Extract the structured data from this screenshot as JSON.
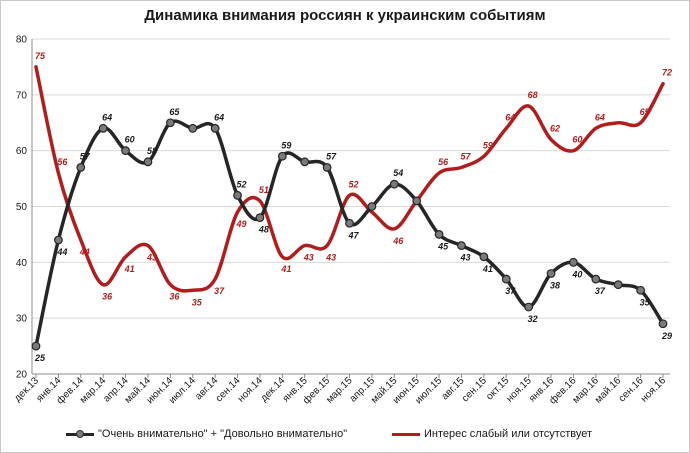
{
  "chart_data": {
    "type": "line",
    "title": "Динамика внимания россиян к украинским событиям",
    "ylim": [
      20,
      80
    ],
    "yticks": [
      "20",
      "30",
      "40",
      "50",
      "60",
      "70",
      "80"
    ],
    "grid": true,
    "legend_position": "bottom",
    "categories": [
      "дек.13",
      "янв.14",
      "фев.14",
      "мар.14",
      "апр.14",
      "май.14",
      "июн.14",
      "июл.14",
      "авг.14",
      "сен.14",
      "ноя.14",
      "дек.14",
      "янв.15",
      "фев.15",
      "мар.15",
      "апр.15",
      "май.15",
      "июн.15",
      "июл.15",
      "авг.15",
      "сен.15",
      "окт.15",
      "ноя.15",
      "янв.16",
      "фев.16",
      "мар.16",
      "май.16",
      "сен.16",
      "ноя.16"
    ],
    "series": [
      {
        "name": "\"Очень внимательно\" + \"Довольно внимательно\"",
        "color": "#262626",
        "values": [
          25,
          44,
          57,
          64,
          60,
          58,
          65,
          64,
          64,
          52,
          48,
          59,
          58,
          57,
          47,
          50,
          54,
          51,
          45,
          43,
          41,
          37,
          32,
          38,
          40,
          37,
          36,
          35,
          29
        ],
        "labels": [
          "25",
          "44",
          "57",
          "64",
          "60",
          "58",
          "65",
          "",
          "64",
          "52",
          "48",
          "59",
          "",
          "57",
          "47",
          "",
          "54",
          "",
          "45",
          "43",
          "41",
          "37",
          "32",
          "38",
          "40",
          "37",
          "",
          "35",
          "29"
        ]
      },
      {
        "name": "Интерес слабый или отсутствует",
        "color": "#b11d1d",
        "values": [
          75,
          56,
          44,
          36,
          41,
          43,
          36,
          35,
          37,
          49,
          51,
          41,
          43,
          43,
          52,
          49,
          46,
          51,
          56,
          57,
          59,
          64,
          68,
          62,
          60,
          64,
          65,
          65,
          72
        ],
        "labels": [
          "75",
          "56",
          "44",
          "36",
          "41",
          "43",
          "36",
          "35",
          "37",
          "49",
          "51",
          "41",
          "43",
          "43",
          "52",
          "",
          "46",
          "",
          "56",
          "57",
          "59",
          "64",
          "68",
          "62",
          "60",
          "64",
          "",
          "65",
          "72"
        ]
      }
    ]
  }
}
